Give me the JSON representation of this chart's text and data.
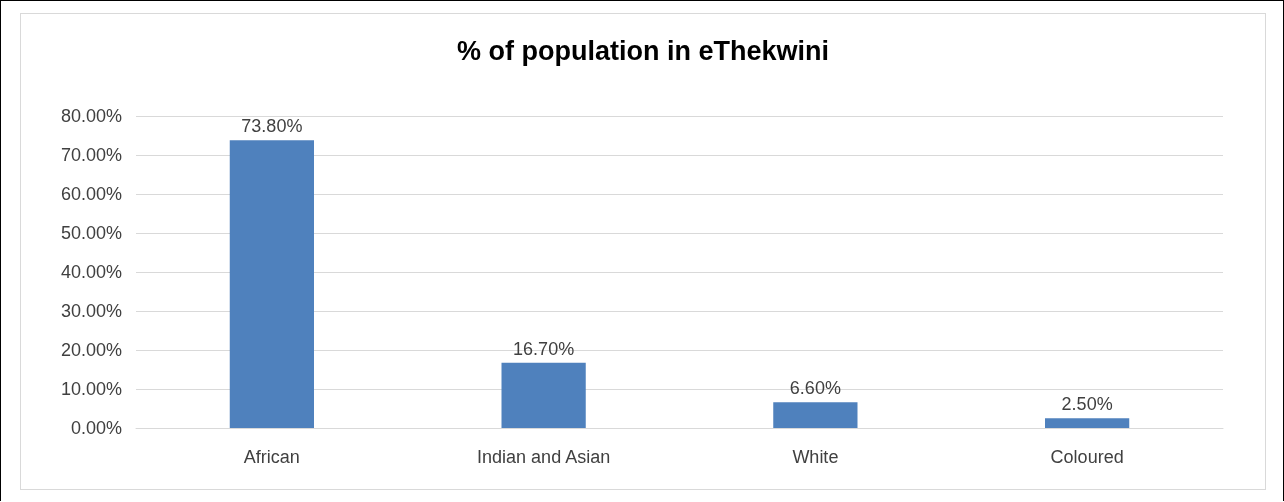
{
  "chart_data": {
    "type": "bar",
    "title": "% of population in eThekwini",
    "categories": [
      "African",
      "Indian and Asian",
      "White",
      "Coloured"
    ],
    "values": [
      73.8,
      16.7,
      6.6,
      2.5
    ],
    "color": "#4f81bd",
    "value_labels": [
      "73.80%",
      "16.70%",
      "6.60%",
      "2.50%"
    ],
    "ylim": [
      0,
      80
    ],
    "yticks": [
      {
        "value": 0,
        "label": "0.00%"
      },
      {
        "value": 10,
        "label": "10.00%"
      },
      {
        "value": 20,
        "label": "20.00%"
      },
      {
        "value": 30,
        "label": "30.00%"
      },
      {
        "value": 40,
        "label": "40.00%"
      },
      {
        "value": 50,
        "label": "50.00%"
      },
      {
        "value": 60,
        "label": "60.00%"
      },
      {
        "value": 70,
        "label": "70.00%"
      },
      {
        "value": 80,
        "label": "80.00%"
      }
    ],
    "grid": "y"
  }
}
